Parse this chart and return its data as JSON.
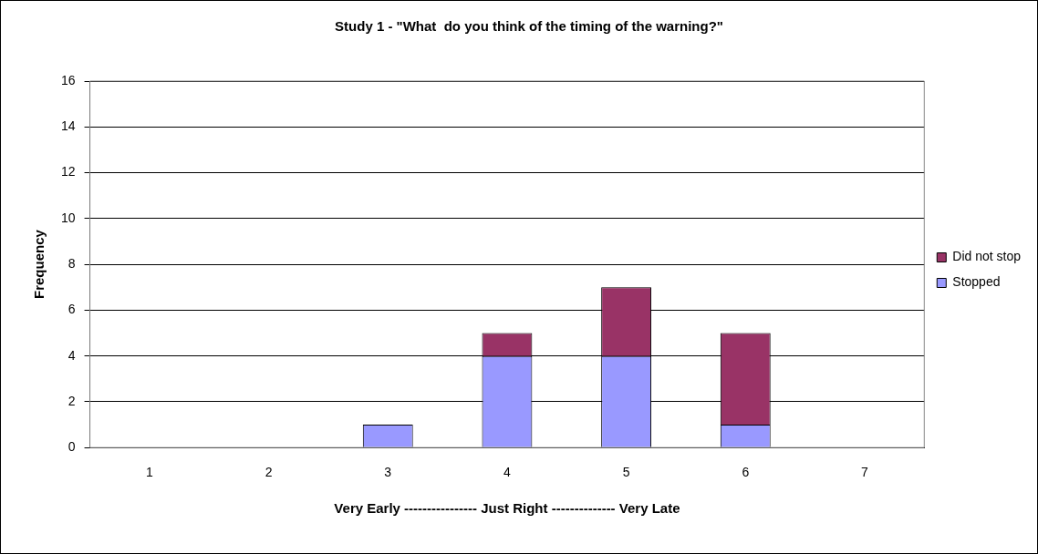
{
  "chart_data": {
    "type": "bar",
    "title": "Study 1 - \"What  do you think of the timing of the warning?\"",
    "xlabel": "Very Early ---------------- Just Right -------------- Very Late",
    "ylabel": "Frequency",
    "categories": [
      "1",
      "2",
      "3",
      "4",
      "5",
      "6",
      "7"
    ],
    "series": [
      {
        "name": "Stopped",
        "color": "#9999ff",
        "values": [
          0,
          0,
          1,
          4,
          4,
          1,
          0
        ]
      },
      {
        "name": "Did not stop",
        "color": "#993366",
        "values": [
          0,
          0,
          0,
          1,
          3,
          4,
          0
        ]
      }
    ],
    "stacked": true,
    "ylim": [
      0,
      16
    ],
    "yticks": [
      0,
      2,
      4,
      6,
      8,
      10,
      12,
      14,
      16
    ],
    "grid": "y",
    "legend": "right"
  }
}
